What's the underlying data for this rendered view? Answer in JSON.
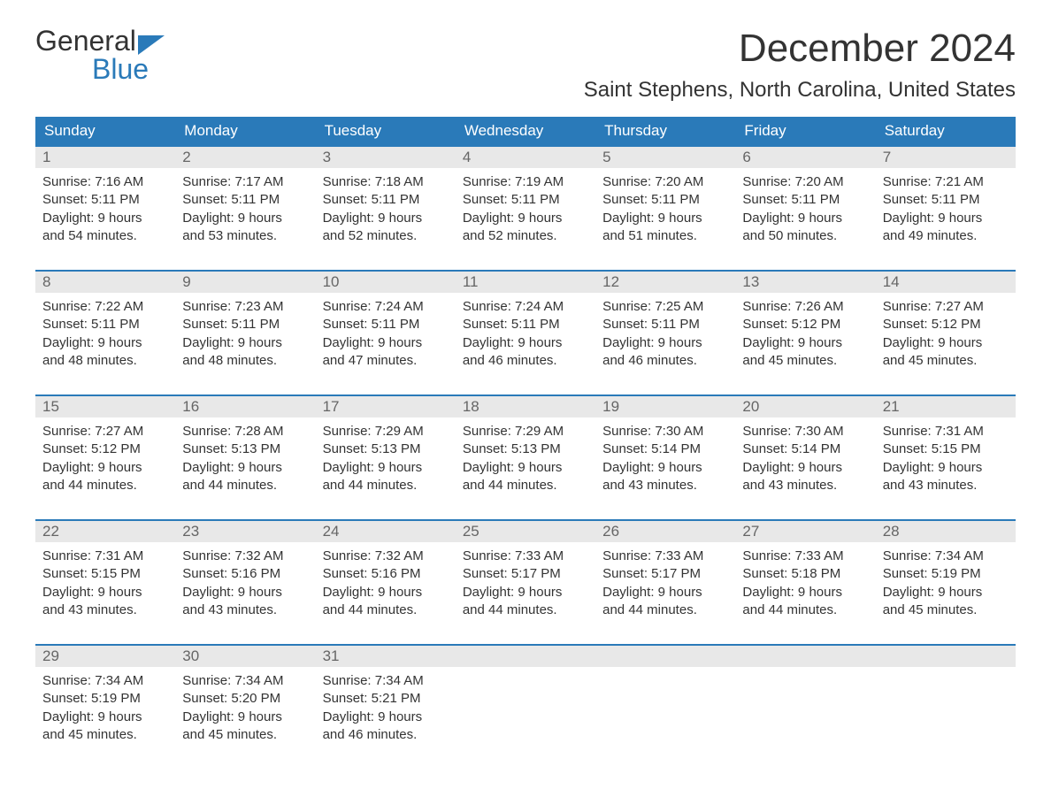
{
  "brand": {
    "top": "General",
    "bottom": "Blue"
  },
  "title": "December 2024",
  "location": "Saint Stephens, North Carolina, United States",
  "colors": {
    "header_bg": "#2a7ab9",
    "header_text": "#ffffff",
    "daynum_bg": "#e8e8e8",
    "daynum_text": "#666666",
    "text": "#333333",
    "bg": "#ffffff"
  },
  "weekdays": [
    "Sunday",
    "Monday",
    "Tuesday",
    "Wednesday",
    "Thursday",
    "Friday",
    "Saturday"
  ],
  "weeks": [
    [
      {
        "n": "1",
        "sunrise": "Sunrise: 7:16 AM",
        "sunset": "Sunset: 5:11 PM",
        "d1": "Daylight: 9 hours",
        "d2": "and 54 minutes."
      },
      {
        "n": "2",
        "sunrise": "Sunrise: 7:17 AM",
        "sunset": "Sunset: 5:11 PM",
        "d1": "Daylight: 9 hours",
        "d2": "and 53 minutes."
      },
      {
        "n": "3",
        "sunrise": "Sunrise: 7:18 AM",
        "sunset": "Sunset: 5:11 PM",
        "d1": "Daylight: 9 hours",
        "d2": "and 52 minutes."
      },
      {
        "n": "4",
        "sunrise": "Sunrise: 7:19 AM",
        "sunset": "Sunset: 5:11 PM",
        "d1": "Daylight: 9 hours",
        "d2": "and 52 minutes."
      },
      {
        "n": "5",
        "sunrise": "Sunrise: 7:20 AM",
        "sunset": "Sunset: 5:11 PM",
        "d1": "Daylight: 9 hours",
        "d2": "and 51 minutes."
      },
      {
        "n": "6",
        "sunrise": "Sunrise: 7:20 AM",
        "sunset": "Sunset: 5:11 PM",
        "d1": "Daylight: 9 hours",
        "d2": "and 50 minutes."
      },
      {
        "n": "7",
        "sunrise": "Sunrise: 7:21 AM",
        "sunset": "Sunset: 5:11 PM",
        "d1": "Daylight: 9 hours",
        "d2": "and 49 minutes."
      }
    ],
    [
      {
        "n": "8",
        "sunrise": "Sunrise: 7:22 AM",
        "sunset": "Sunset: 5:11 PM",
        "d1": "Daylight: 9 hours",
        "d2": "and 48 minutes."
      },
      {
        "n": "9",
        "sunrise": "Sunrise: 7:23 AM",
        "sunset": "Sunset: 5:11 PM",
        "d1": "Daylight: 9 hours",
        "d2": "and 48 minutes."
      },
      {
        "n": "10",
        "sunrise": "Sunrise: 7:24 AM",
        "sunset": "Sunset: 5:11 PM",
        "d1": "Daylight: 9 hours",
        "d2": "and 47 minutes."
      },
      {
        "n": "11",
        "sunrise": "Sunrise: 7:24 AM",
        "sunset": "Sunset: 5:11 PM",
        "d1": "Daylight: 9 hours",
        "d2": "and 46 minutes."
      },
      {
        "n": "12",
        "sunrise": "Sunrise: 7:25 AM",
        "sunset": "Sunset: 5:11 PM",
        "d1": "Daylight: 9 hours",
        "d2": "and 46 minutes."
      },
      {
        "n": "13",
        "sunrise": "Sunrise: 7:26 AM",
        "sunset": "Sunset: 5:12 PM",
        "d1": "Daylight: 9 hours",
        "d2": "and 45 minutes."
      },
      {
        "n": "14",
        "sunrise": "Sunrise: 7:27 AM",
        "sunset": "Sunset: 5:12 PM",
        "d1": "Daylight: 9 hours",
        "d2": "and 45 minutes."
      }
    ],
    [
      {
        "n": "15",
        "sunrise": "Sunrise: 7:27 AM",
        "sunset": "Sunset: 5:12 PM",
        "d1": "Daylight: 9 hours",
        "d2": "and 44 minutes."
      },
      {
        "n": "16",
        "sunrise": "Sunrise: 7:28 AM",
        "sunset": "Sunset: 5:13 PM",
        "d1": "Daylight: 9 hours",
        "d2": "and 44 minutes."
      },
      {
        "n": "17",
        "sunrise": "Sunrise: 7:29 AM",
        "sunset": "Sunset: 5:13 PM",
        "d1": "Daylight: 9 hours",
        "d2": "and 44 minutes."
      },
      {
        "n": "18",
        "sunrise": "Sunrise: 7:29 AM",
        "sunset": "Sunset: 5:13 PM",
        "d1": "Daylight: 9 hours",
        "d2": "and 44 minutes."
      },
      {
        "n": "19",
        "sunrise": "Sunrise: 7:30 AM",
        "sunset": "Sunset: 5:14 PM",
        "d1": "Daylight: 9 hours",
        "d2": "and 43 minutes."
      },
      {
        "n": "20",
        "sunrise": "Sunrise: 7:30 AM",
        "sunset": "Sunset: 5:14 PM",
        "d1": "Daylight: 9 hours",
        "d2": "and 43 minutes."
      },
      {
        "n": "21",
        "sunrise": "Sunrise: 7:31 AM",
        "sunset": "Sunset: 5:15 PM",
        "d1": "Daylight: 9 hours",
        "d2": "and 43 minutes."
      }
    ],
    [
      {
        "n": "22",
        "sunrise": "Sunrise: 7:31 AM",
        "sunset": "Sunset: 5:15 PM",
        "d1": "Daylight: 9 hours",
        "d2": "and 43 minutes."
      },
      {
        "n": "23",
        "sunrise": "Sunrise: 7:32 AM",
        "sunset": "Sunset: 5:16 PM",
        "d1": "Daylight: 9 hours",
        "d2": "and 43 minutes."
      },
      {
        "n": "24",
        "sunrise": "Sunrise: 7:32 AM",
        "sunset": "Sunset: 5:16 PM",
        "d1": "Daylight: 9 hours",
        "d2": "and 44 minutes."
      },
      {
        "n": "25",
        "sunrise": "Sunrise: 7:33 AM",
        "sunset": "Sunset: 5:17 PM",
        "d1": "Daylight: 9 hours",
        "d2": "and 44 minutes."
      },
      {
        "n": "26",
        "sunrise": "Sunrise: 7:33 AM",
        "sunset": "Sunset: 5:17 PM",
        "d1": "Daylight: 9 hours",
        "d2": "and 44 minutes."
      },
      {
        "n": "27",
        "sunrise": "Sunrise: 7:33 AM",
        "sunset": "Sunset: 5:18 PM",
        "d1": "Daylight: 9 hours",
        "d2": "and 44 minutes."
      },
      {
        "n": "28",
        "sunrise": "Sunrise: 7:34 AM",
        "sunset": "Sunset: 5:19 PM",
        "d1": "Daylight: 9 hours",
        "d2": "and 45 minutes."
      }
    ],
    [
      {
        "n": "29",
        "sunrise": "Sunrise: 7:34 AM",
        "sunset": "Sunset: 5:19 PM",
        "d1": "Daylight: 9 hours",
        "d2": "and 45 minutes."
      },
      {
        "n": "30",
        "sunrise": "Sunrise: 7:34 AM",
        "sunset": "Sunset: 5:20 PM",
        "d1": "Daylight: 9 hours",
        "d2": "and 45 minutes."
      },
      {
        "n": "31",
        "sunrise": "Sunrise: 7:34 AM",
        "sunset": "Sunset: 5:21 PM",
        "d1": "Daylight: 9 hours",
        "d2": "and 46 minutes."
      },
      null,
      null,
      null,
      null
    ]
  ]
}
